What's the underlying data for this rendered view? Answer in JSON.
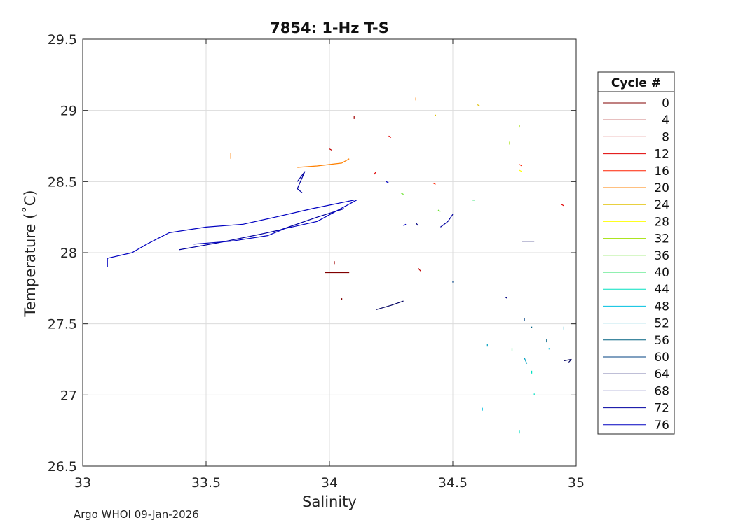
{
  "chart_data": {
    "type": "line",
    "title": "7854: 1-Hz T-S",
    "xlabel": "Salinity",
    "ylabel": "Temperature (˚C)",
    "xlim": [
      33,
      35
    ],
    "ylim": [
      26.5,
      29.5
    ],
    "xticks": [
      "33",
      "33.5",
      "34",
      "34.5",
      "35"
    ],
    "yticks": [
      "26.5",
      "27",
      "27.5",
      "28",
      "28.5",
      "29",
      "29.5"
    ],
    "grid": true,
    "legend": {
      "title": "Cycle #",
      "placement": "outside-right"
    },
    "series": [
      {
        "name": "0",
        "color": "#800000",
        "segments": [
          [
            [
              33.98,
              27.86
            ],
            [
              34.08,
              27.86
            ]
          ],
          [
            [
              34.05,
              27.68
            ],
            [
              34.05,
              27.67
            ]
          ]
        ]
      },
      {
        "name": "4",
        "color": "#a00000",
        "segments": [
          [
            [
              34.02,
              27.94
            ],
            [
              34.02,
              27.92
            ]
          ],
          [
            [
              34.1,
              28.96
            ],
            [
              34.1,
              28.94
            ]
          ]
        ]
      },
      {
        "name": "8",
        "color": "#c00000",
        "segments": [
          [
            [
              34.0,
              28.73
            ],
            [
              34.01,
              28.72
            ]
          ],
          [
            [
              34.36,
              27.89
            ],
            [
              34.37,
              27.87
            ]
          ]
        ]
      },
      {
        "name": "12",
        "color": "#e00000",
        "segments": [
          [
            [
              34.18,
              28.55
            ],
            [
              34.19,
              28.57
            ]
          ],
          [
            [
              34.24,
              28.82
            ],
            [
              34.25,
              28.81
            ]
          ],
          [
            [
              34.94,
              28.34
            ],
            [
              34.95,
              28.33
            ]
          ]
        ]
      },
      {
        "name": "16",
        "color": "#ff2000",
        "segments": [
          [
            [
              34.42,
              28.49
            ],
            [
              34.43,
              28.48
            ]
          ],
          [
            [
              34.77,
              28.62
            ],
            [
              34.78,
              28.61
            ]
          ]
        ]
      },
      {
        "name": "20",
        "color": "#ff8000",
        "segments": [
          [
            [
              33.87,
              28.6
            ],
            [
              33.95,
              28.61
            ],
            [
              34.05,
              28.63
            ],
            [
              34.08,
              28.66
            ]
          ],
          [
            [
              34.35,
              29.09
            ],
            [
              34.35,
              29.07
            ]
          ],
          [
            [
              33.6,
              28.7
            ],
            [
              33.6,
              28.66
            ]
          ]
        ]
      },
      {
        "name": "24",
        "color": "#e0c000",
        "segments": [
          [
            [
              34.6,
              29.04
            ],
            [
              34.61,
              29.03
            ]
          ],
          [
            [
              34.43,
              28.97
            ],
            [
              34.43,
              28.96
            ]
          ]
        ]
      },
      {
        "name": "28",
        "color": "#ffff00",
        "segments": [
          [
            [
              34.77,
              28.58
            ],
            [
              34.78,
              28.57
            ]
          ]
        ]
      },
      {
        "name": "32",
        "color": "#a0e000",
        "segments": [
          [
            [
              34.77,
              28.9
            ],
            [
              34.77,
              28.88
            ]
          ],
          [
            [
              34.73,
              28.78
            ],
            [
              34.73,
              28.76
            ]
          ]
        ]
      },
      {
        "name": "36",
        "color": "#60e020",
        "segments": [
          [
            [
              34.29,
              28.42
            ],
            [
              34.3,
              28.41
            ]
          ],
          [
            [
              34.44,
              28.3
            ],
            [
              34.45,
              28.29
            ]
          ]
        ]
      },
      {
        "name": "40",
        "color": "#20e060",
        "segments": [
          [
            [
              34.58,
              28.37
            ],
            [
              34.59,
              28.37
            ]
          ],
          [
            [
              34.74,
              27.33
            ],
            [
              34.74,
              27.31
            ]
          ]
        ]
      },
      {
        "name": "44",
        "color": "#00e0c0",
        "segments": [
          [
            [
              34.82,
              27.17
            ],
            [
              34.82,
              27.15
            ]
          ],
          [
            [
              34.83,
              27.01
            ],
            [
              34.83,
              27.0
            ]
          ],
          [
            [
              34.77,
              26.75
            ],
            [
              34.77,
              26.73
            ]
          ]
        ]
      },
      {
        "name": "48",
        "color": "#00c0e0",
        "segments": [
          [
            [
              34.62,
              26.91
            ],
            [
              34.62,
              26.89
            ]
          ],
          [
            [
              34.89,
              27.33
            ],
            [
              34.89,
              27.32
            ]
          ]
        ]
      },
      {
        "name": "52",
        "color": "#00a0c0",
        "segments": [
          [
            [
              34.64,
              27.36
            ],
            [
              34.64,
              27.34
            ]
          ],
          [
            [
              34.79,
              27.26
            ],
            [
              34.8,
              27.22
            ]
          ],
          [
            [
              34.95,
              27.48
            ],
            [
              34.95,
              27.46
            ]
          ]
        ]
      },
      {
        "name": "56",
        "color": "#006080",
        "segments": [
          [
            [
              34.82,
              27.48
            ],
            [
              34.82,
              27.47
            ]
          ],
          [
            [
              34.88,
              27.39
            ],
            [
              34.88,
              27.37
            ]
          ]
        ]
      },
      {
        "name": "60",
        "color": "#004080",
        "segments": [
          [
            [
              34.79,
              27.54
            ],
            [
              34.79,
              27.52
            ]
          ],
          [
            [
              34.5,
              27.8
            ],
            [
              34.5,
              27.79
            ]
          ]
        ]
      },
      {
        "name": "64",
        "color": "#000060",
        "segments": [
          [
            [
              34.19,
              27.6
            ],
            [
              34.25,
              27.63
            ],
            [
              34.3,
              27.66
            ]
          ],
          [
            [
              34.95,
              27.24
            ],
            [
              34.98,
              27.25
            ],
            [
              34.97,
              27.23
            ]
          ],
          [
            [
              34.78,
              28.08
            ],
            [
              34.83,
              28.08
            ]
          ]
        ]
      },
      {
        "name": "68",
        "color": "#000080",
        "segments": [
          [
            [
              34.71,
              27.69
            ],
            [
              34.72,
              27.68
            ]
          ],
          [
            [
              34.35,
              28.21
            ],
            [
              34.36,
              28.19
            ]
          ]
        ]
      },
      {
        "name": "72",
        "color": "#0000a0",
        "segments": [
          [
            [
              33.39,
              28.02
            ],
            [
              33.55,
              28.07
            ],
            [
              33.72,
              28.13
            ],
            [
              33.8,
              28.16
            ],
            [
              33.95,
              28.25
            ],
            [
              34.06,
              28.31
            ]
          ],
          [
            [
              33.87,
              28.5
            ],
            [
              33.9,
              28.57
            ],
            [
              33.87,
              28.45
            ],
            [
              33.89,
              28.42
            ]
          ],
          [
            [
              34.45,
              28.18
            ],
            [
              34.48,
              28.22
            ],
            [
              34.5,
              28.27
            ]
          ]
        ]
      },
      {
        "name": "76",
        "color": "#0000c0",
        "segments": [
          [
            [
              33.1,
              27.9
            ],
            [
              33.1,
              27.96
            ],
            [
              33.2,
              28.0
            ],
            [
              33.26,
              28.06
            ],
            [
              33.35,
              28.14
            ],
            [
              33.5,
              28.18
            ],
            [
              33.65,
              28.2
            ],
            [
              33.78,
              28.25
            ],
            [
              33.93,
              28.31
            ],
            [
              34.1,
              28.37
            ]
          ],
          [
            [
              33.45,
              28.06
            ],
            [
              33.6,
              28.08
            ],
            [
              33.75,
              28.12
            ],
            [
              33.82,
              28.17
            ],
            [
              33.95,
              28.22
            ],
            [
              34.11,
              28.37
            ]
          ],
          [
            [
              34.23,
              28.5
            ],
            [
              34.24,
              28.49
            ]
          ],
          [
            [
              34.3,
              28.19
            ],
            [
              34.31,
              28.2
            ]
          ]
        ]
      }
    ]
  },
  "footer": {
    "credit": "Argo WHOI 09-Jan-2026"
  }
}
